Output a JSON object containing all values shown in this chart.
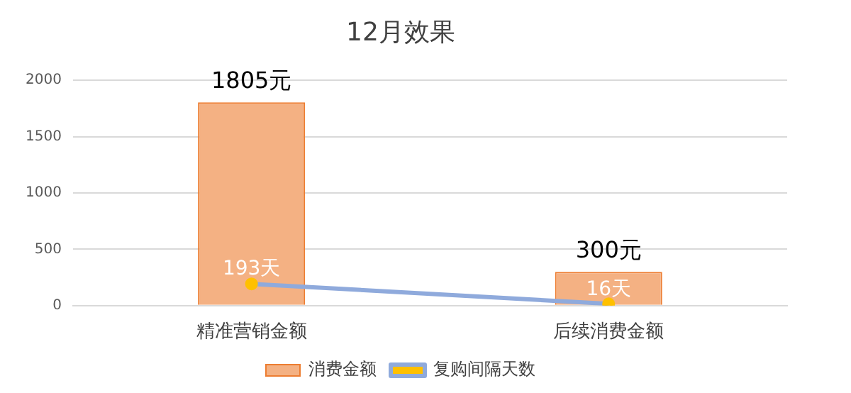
{
  "chart_data": {
    "type": "bar",
    "title": "12月效果",
    "categories": [
      "精准营销金额",
      "后续消费金额"
    ],
    "series": [
      {
        "name": "消费金额",
        "color": "#f4b183",
        "values": [
          1805,
          300
        ],
        "value_labels": [
          "1805元",
          "300元"
        ]
      },
      {
        "name": "复购间隔天数",
        "type": "line",
        "color": "#8faadc",
        "values": [
          193,
          16
        ],
        "value_labels": [
          "193天",
          "16天"
        ]
      }
    ],
    "ylim": [
      0,
      2000
    ],
    "yticks": [
      0,
      500,
      1000,
      1500,
      2000
    ],
    "grid": "y",
    "legend": "bottom",
    "marker": "circle"
  }
}
